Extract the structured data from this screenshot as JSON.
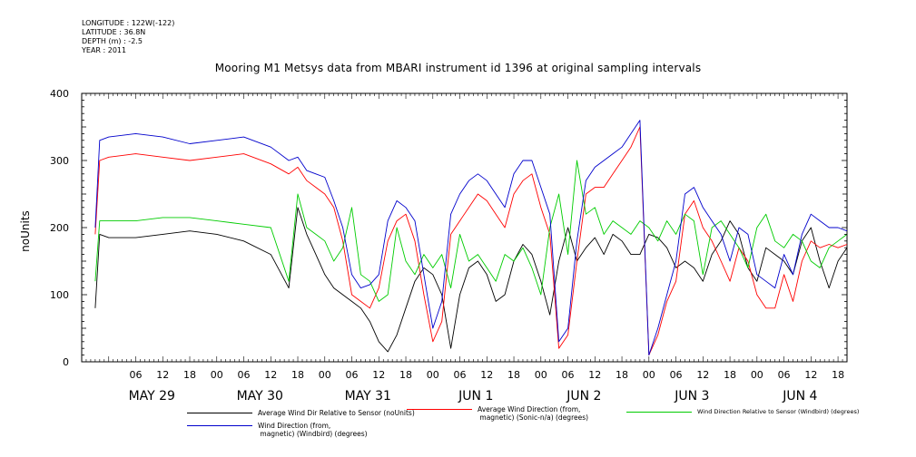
{
  "meta": {
    "lines": [
      "LONGITUDE : 122W(-122)",
      "LATITUDE : 36.8N",
      "DEPTH (m) : -2.5",
      "YEAR : 2011"
    ]
  },
  "chart_data": {
    "type": "line",
    "title": "Mooring M1 Metsys data from MBARI instrument id 1396 at original sampling intervals",
    "ylabel": "noUnits",
    "xlabel": "",
    "ylim": [
      0,
      400
    ],
    "yticks": [
      0,
      100,
      200,
      300,
      400
    ],
    "xlim_hours": [
      -6,
      164
    ],
    "hour_ticks": [
      "06",
      "12",
      "18",
      "00",
      "06",
      "12",
      "18",
      "00",
      "06",
      "12",
      "18",
      "00",
      "06",
      "12",
      "18",
      "00",
      "06",
      "12",
      "18",
      "00",
      "06",
      "12",
      "18",
      "00",
      "06",
      "12",
      "18",
      "00"
    ],
    "day_labels": [
      "MAY 29",
      "MAY 30",
      "MAY 31",
      "JUN  1",
      "JUN  2",
      "JUN  3",
      "JUN  4"
    ],
    "grid": false,
    "legend_position": "bottom",
    "series": [
      {
        "name": "Average Wind Dir Relative to Sensor (noUnits)",
        "color": "#000000",
        "x": [
          -3,
          -2,
          0,
          6,
          12,
          18,
          24,
          30,
          36,
          40,
          42,
          44,
          46,
          48,
          50,
          52,
          54,
          56,
          58,
          60,
          62,
          64,
          66,
          68,
          70,
          72,
          74,
          76,
          78,
          80,
          82,
          84,
          86,
          88,
          90,
          92,
          94,
          96,
          98,
          100,
          102,
          104,
          106,
          108,
          110,
          112,
          114,
          116,
          118,
          120,
          122,
          124,
          126,
          128,
          130,
          132,
          134,
          136,
          138,
          140,
          142,
          144,
          146,
          148,
          150,
          152,
          154,
          156,
          158,
          160,
          162,
          164
        ],
        "y": [
          80,
          190,
          185,
          185,
          190,
          195,
          190,
          180,
          160,
          110,
          230,
          190,
          160,
          130,
          110,
          100,
          90,
          80,
          60,
          30,
          15,
          40,
          80,
          120,
          140,
          130,
          100,
          20,
          100,
          140,
          150,
          130,
          90,
          100,
          150,
          175,
          160,
          120,
          70,
          150,
          200,
          150,
          170,
          185,
          160,
          190,
          180,
          160,
          160,
          190,
          185,
          170,
          140,
          150,
          140,
          120,
          160,
          180,
          210,
          190,
          140,
          120,
          170,
          160,
          150,
          130,
          180,
          200,
          150,
          110,
          150,
          170
        ]
      },
      {
        "name": "Average Wind Direction (from,\n magnetic) (Sonic-n/a) (degrees)",
        "color": "#ff0000",
        "x": [
          -3,
          -2,
          0,
          6,
          12,
          18,
          24,
          30,
          36,
          40,
          42,
          44,
          46,
          48,
          50,
          52,
          54,
          56,
          58,
          60,
          62,
          64,
          66,
          68,
          70,
          72,
          74,
          76,
          78,
          80,
          82,
          84,
          86,
          88,
          90,
          92,
          94,
          96,
          98,
          100,
          102,
          104,
          106,
          108,
          110,
          112,
          114,
          116,
          118,
          120,
          122,
          124,
          126,
          128,
          130,
          132,
          134,
          136,
          138,
          140,
          142,
          144,
          146,
          148,
          150,
          152,
          154,
          156,
          158,
          160,
          162,
          164
        ],
        "y": [
          190,
          300,
          305,
          310,
          305,
          300,
          305,
          310,
          295,
          280,
          290,
          270,
          260,
          250,
          230,
          180,
          100,
          90,
          80,
          110,
          180,
          210,
          220,
          180,
          100,
          30,
          60,
          190,
          210,
          230,
          250,
          240,
          220,
          200,
          250,
          270,
          280,
          230,
          190,
          20,
          40,
          150,
          250,
          260,
          260,
          280,
          300,
          320,
          350,
          10,
          40,
          90,
          120,
          220,
          240,
          200,
          180,
          150,
          120,
          170,
          150,
          100,
          80,
          80,
          130,
          90,
          150,
          180,
          170,
          175,
          170,
          175
        ]
      },
      {
        "name": "Wind Direction Relative to Sensor (Windbird) (degrees)",
        "color": "#00cc00",
        "x": [
          -3,
          -2,
          0,
          6,
          12,
          18,
          24,
          30,
          36,
          40,
          42,
          44,
          46,
          48,
          50,
          52,
          54,
          56,
          58,
          60,
          62,
          64,
          66,
          68,
          70,
          72,
          74,
          76,
          78,
          80,
          82,
          84,
          86,
          88,
          90,
          92,
          94,
          96,
          98,
          100,
          102,
          104,
          106,
          108,
          110,
          112,
          114,
          116,
          118,
          120,
          122,
          124,
          126,
          128,
          130,
          132,
          134,
          136,
          138,
          140,
          142,
          144,
          146,
          148,
          150,
          152,
          154,
          156,
          158,
          160,
          162,
          164
        ],
        "y": [
          120,
          210,
          210,
          210,
          215,
          215,
          210,
          205,
          200,
          120,
          250,
          200,
          190,
          180,
          150,
          170,
          230,
          130,
          120,
          90,
          100,
          200,
          150,
          130,
          160,
          140,
          160,
          110,
          190,
          150,
          160,
          140,
          120,
          160,
          150,
          170,
          140,
          100,
          200,
          250,
          160,
          300,
          220,
          230,
          190,
          210,
          200,
          190,
          210,
          200,
          180,
          210,
          190,
          220,
          210,
          130,
          200,
          210,
          190,
          170,
          140,
          200,
          220,
          180,
          170,
          190,
          180,
          150,
          140,
          170,
          180,
          190
        ]
      },
      {
        "name": "Wind Direction (from,\n magnetic) (Windbird) (degrees)",
        "color": "#0000cc",
        "x": [
          -3,
          -2,
          0,
          6,
          12,
          18,
          24,
          30,
          36,
          40,
          42,
          44,
          46,
          48,
          50,
          52,
          54,
          56,
          58,
          60,
          62,
          64,
          66,
          68,
          70,
          72,
          74,
          76,
          78,
          80,
          82,
          84,
          86,
          88,
          90,
          92,
          94,
          96,
          98,
          100,
          102,
          104,
          106,
          108,
          110,
          112,
          114,
          116,
          118,
          120,
          122,
          124,
          126,
          128,
          130,
          132,
          134,
          136,
          138,
          140,
          142,
          144,
          146,
          148,
          150,
          152,
          154,
          156,
          158,
          160,
          162,
          164
        ],
        "y": [
          200,
          330,
          335,
          340,
          335,
          325,
          330,
          335,
          320,
          300,
          305,
          285,
          280,
          275,
          240,
          200,
          130,
          110,
          115,
          130,
          210,
          240,
          230,
          210,
          130,
          50,
          90,
          220,
          250,
          270,
          280,
          270,
          250,
          230,
          280,
          300,
          300,
          260,
          220,
          30,
          50,
          180,
          270,
          290,
          300,
          310,
          320,
          340,
          360,
          10,
          50,
          100,
          150,
          250,
          260,
          230,
          210,
          190,
          150,
          200,
          190,
          130,
          120,
          110,
          160,
          130,
          190,
          220,
          210,
          200,
          200,
          195
        ]
      }
    ]
  }
}
